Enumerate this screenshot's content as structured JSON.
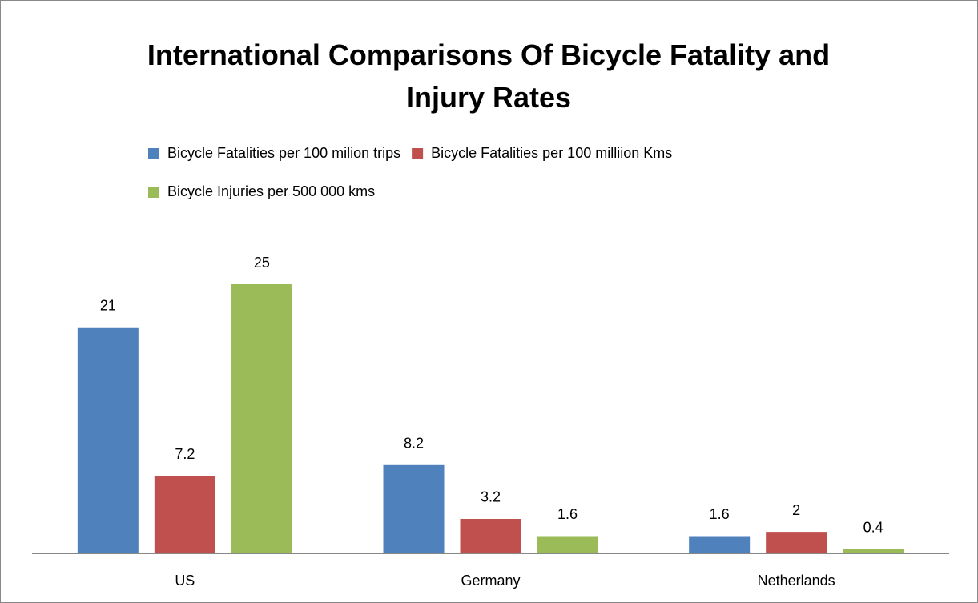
{
  "chart_data": {
    "type": "bar",
    "title": "International Comparisons Of Bicycle Fatality and Injury Rates",
    "categories": [
      "US",
      "Germany",
      "Netherlands"
    ],
    "series": [
      {
        "name": "Bicycle Fatalities per 100 milion trips",
        "color": "#4f81bd",
        "values": [
          21,
          8.2,
          1.6
        ]
      },
      {
        "name": "Bicycle Fatalities per 100 milliion Kms",
        "color": "#c0504d",
        "values": [
          7.2,
          3.2,
          2
        ]
      },
      {
        "name": "Bicycle Injuries per 500 000 kms",
        "color": "#9bbb59",
        "values": [
          25,
          1.6,
          0.4
        ]
      }
    ],
    "legend": "top"
  }
}
